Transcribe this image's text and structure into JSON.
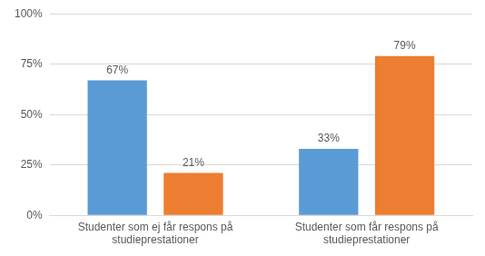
{
  "chart_data": {
    "type": "bar",
    "categories": [
      [
        "Studenter som ej får respons på",
        "studieprestationer"
      ],
      [
        "Studenter som får respons på",
        "studieprestationer"
      ]
    ],
    "series": [
      {
        "color": "#5b9bd5",
        "values": [
          67,
          33
        ],
        "value_labels": [
          "67%",
          "33%"
        ]
      },
      {
        "color": "#ed7d31",
        "values": [
          21,
          79
        ],
        "value_labels": [
          "21%",
          "79%"
        ]
      }
    ],
    "ylim": [
      0,
      100
    ],
    "yticks": [
      {
        "value": 0,
        "label": "0%"
      },
      {
        "value": 25,
        "label": "25%"
      },
      {
        "value": 50,
        "label": "50%"
      },
      {
        "value": 75,
        "label": "75%"
      },
      {
        "value": 100,
        "label": "100%"
      }
    ],
    "grid": true,
    "data_labels": true
  }
}
